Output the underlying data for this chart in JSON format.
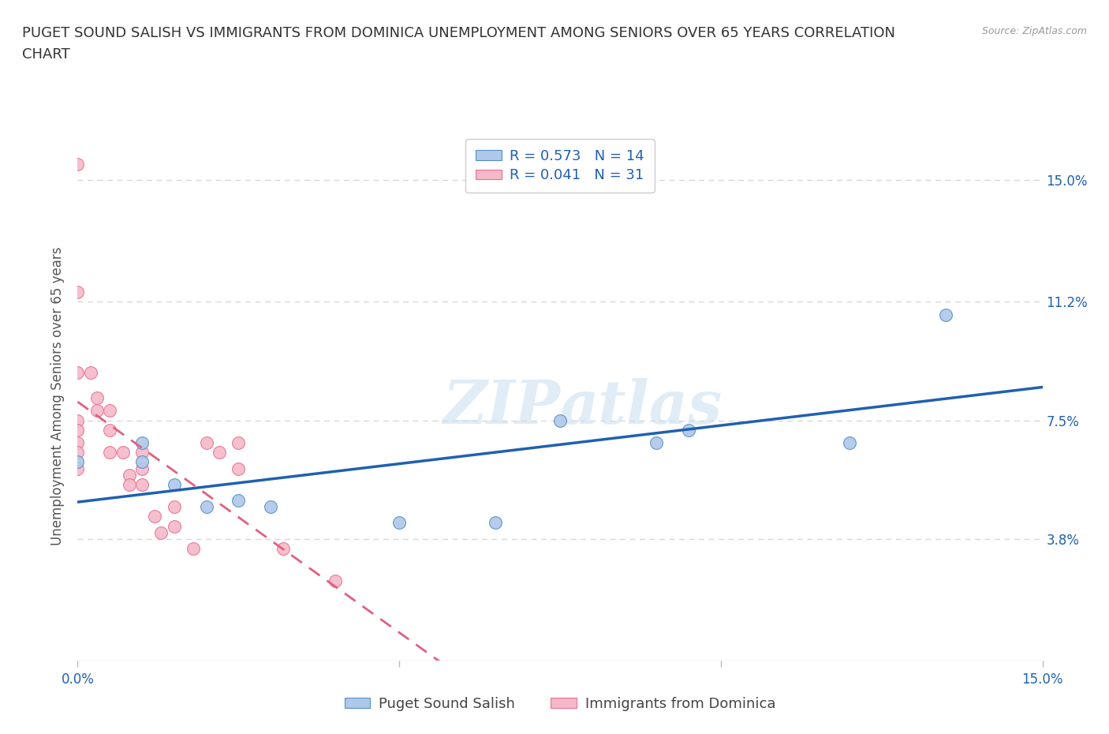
{
  "title_line1": "PUGET SOUND SALISH VS IMMIGRANTS FROM DOMINICA UNEMPLOYMENT AMONG SENIORS OVER 65 YEARS CORRELATION",
  "title_line2": "CHART",
  "source": "Source: ZipAtlas.com",
  "ylabel": "Unemployment Among Seniors over 65 years",
  "y_ticks": [
    0.0,
    0.038,
    0.075,
    0.112,
    0.15
  ],
  "y_tick_labels": [
    "",
    "3.8%",
    "7.5%",
    "11.2%",
    "15.0%"
  ],
  "x_lim": [
    0.0,
    0.15
  ],
  "y_lim": [
    0.0,
    0.165
  ],
  "blue_R": 0.573,
  "blue_N": 14,
  "pink_R": 0.041,
  "pink_N": 31,
  "blue_color": "#adc8e8",
  "pink_color": "#f5b8c8",
  "blue_edge_color": "#5590c8",
  "pink_edge_color": "#e87090",
  "blue_line_color": "#2060b0",
  "pink_line_color": "#e06080",
  "watermark_color": "#c8ddf0",
  "grid_color": "#d8d8d8",
  "background_color": "#ffffff",
  "title_fontsize": 13,
  "axis_label_fontsize": 12,
  "tick_fontsize": 12,
  "legend_fontsize": 13,
  "blue_x": [
    0.0,
    0.01,
    0.01,
    0.015,
    0.02,
    0.025,
    0.03,
    0.05,
    0.065,
    0.075,
    0.09,
    0.095,
    0.12,
    0.135
  ],
  "blue_y": [
    0.062,
    0.062,
    0.068,
    0.055,
    0.048,
    0.05,
    0.048,
    0.043,
    0.043,
    0.075,
    0.068,
    0.072,
    0.068,
    0.108
  ],
  "pink_x": [
    0.0,
    0.0,
    0.0,
    0.0,
    0.0,
    0.0,
    0.0,
    0.0,
    0.002,
    0.003,
    0.003,
    0.005,
    0.005,
    0.005,
    0.007,
    0.008,
    0.008,
    0.01,
    0.01,
    0.01,
    0.012,
    0.013,
    0.015,
    0.015,
    0.018,
    0.02,
    0.022,
    0.025,
    0.025,
    0.032,
    0.04
  ],
  "pink_y": [
    0.155,
    0.115,
    0.09,
    0.075,
    0.072,
    0.068,
    0.065,
    0.06,
    0.09,
    0.082,
    0.078,
    0.078,
    0.072,
    0.065,
    0.065,
    0.058,
    0.055,
    0.065,
    0.06,
    0.055,
    0.045,
    0.04,
    0.048,
    0.042,
    0.035,
    0.068,
    0.065,
    0.068,
    0.06,
    0.035,
    0.025
  ]
}
